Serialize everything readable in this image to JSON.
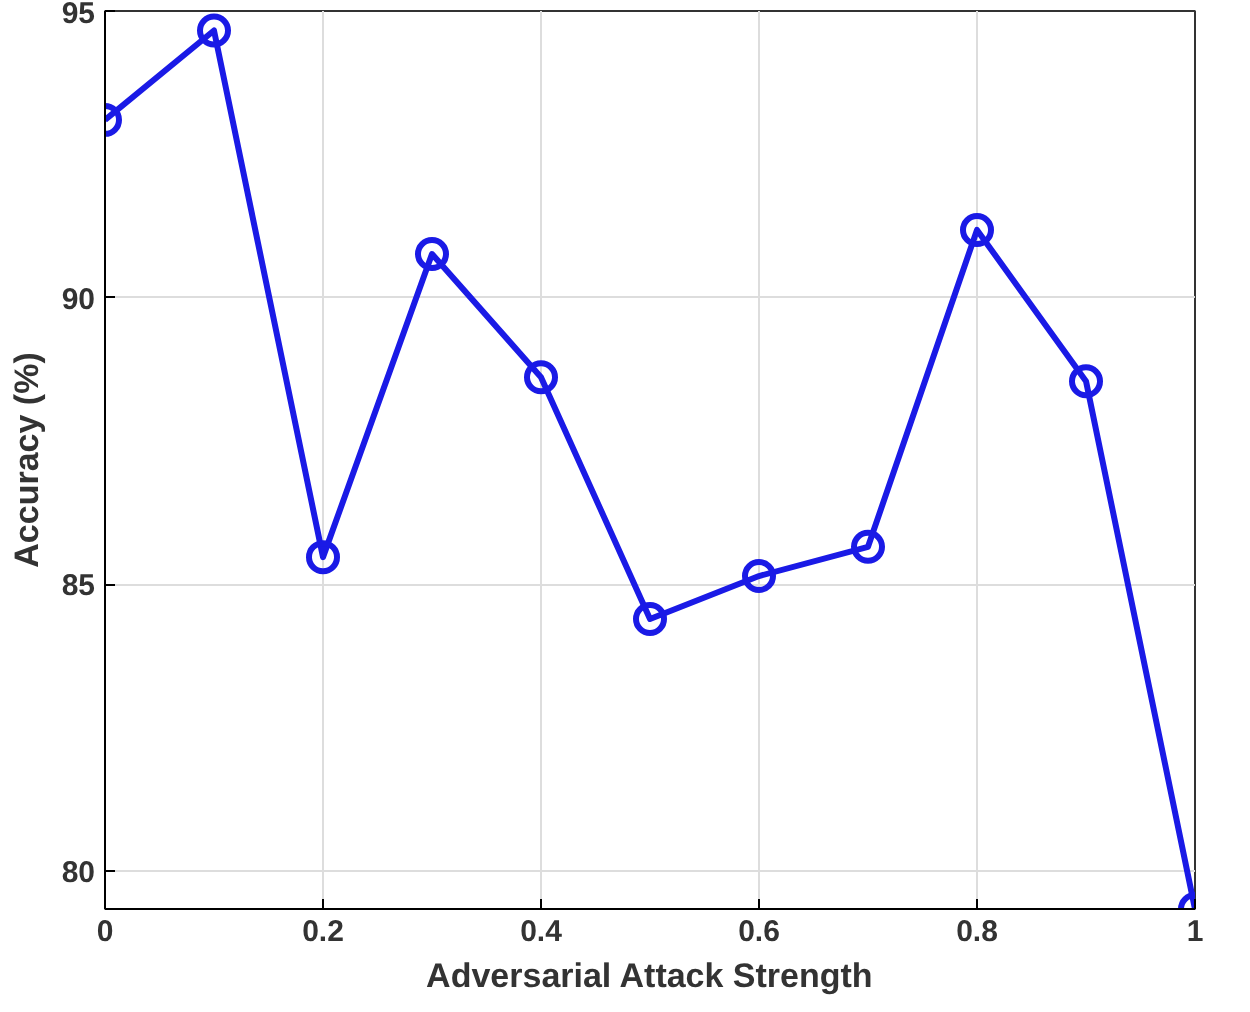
{
  "chart_data": {
    "type": "line",
    "xlabel": "Adversarial Attack Strength",
    "ylabel": "Accuracy (%)",
    "x": [
      0,
      0.1,
      0.2,
      0.3,
      0.4,
      0.5,
      0.6,
      0.7,
      0.8,
      0.9,
      1
    ],
    "series": [
      {
        "color": "#1a1ae6",
        "values": [
          93.1,
          94.66,
          85.47,
          90.76,
          88.61,
          84.39,
          85.14,
          85.65,
          91.18,
          88.54,
          79.33
        ]
      }
    ],
    "xlim": [
      0,
      1
    ],
    "ylim": [
      79.33,
      95
    ],
    "xticks": [
      0,
      0.2,
      0.4,
      0.6,
      0.8,
      1
    ],
    "yticks": [
      80,
      85,
      90,
      95
    ],
    "grid": true,
    "marker": "circle",
    "line_style": "solid"
  }
}
